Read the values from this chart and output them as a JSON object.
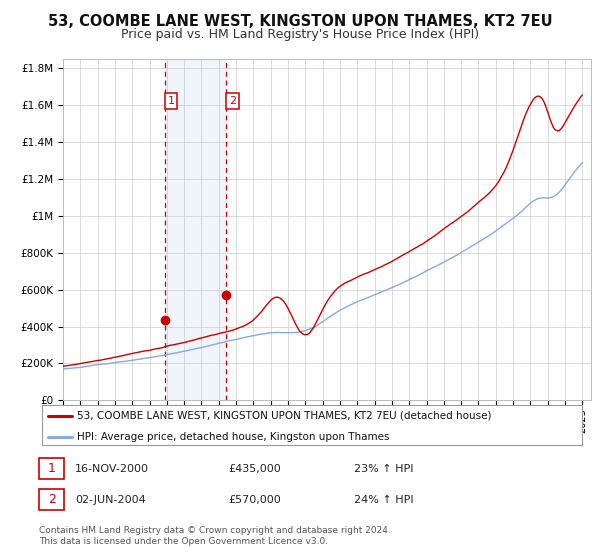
{
  "title": "53, COOMBE LANE WEST, KINGSTON UPON THAMES, KT2 7EU",
  "subtitle": "Price paid vs. HM Land Registry's House Price Index (HPI)",
  "background_color": "#ffffff",
  "plot_bg_color": "#ffffff",
  "grid_color": "#cccccc",
  "ylim": [
    0,
    1850000
  ],
  "yticks": [
    0,
    200000,
    400000,
    600000,
    800000,
    1000000,
    1200000,
    1400000,
    1600000,
    1800000
  ],
  "ytick_labels": [
    "£0",
    "£200K",
    "£400K",
    "£600K",
    "£800K",
    "£1M",
    "£1.2M",
    "£1.4M",
    "£1.6M",
    "£1.8M"
  ],
  "xlim_start": 1995.0,
  "xlim_end": 2025.5,
  "transaction1": {
    "date_num": 2000.88,
    "price": 435000,
    "label": "1"
  },
  "transaction2": {
    "date_num": 2004.42,
    "price": 570000,
    "label": "2"
  },
  "shaded_region_start": 2000.88,
  "shaded_region_end": 2004.42,
  "red_line_color": "#cc0000",
  "blue_line_color": "#88aadd",
  "legend_label_red": "53, COOMBE LANE WEST, KINGSTON UPON THAMES, KT2 7EU (detached house)",
  "legend_label_blue": "HPI: Average price, detached house, Kingston upon Thames",
  "table_row1": [
    "1",
    "16-NOV-2000",
    "£435,000",
    "23% ↑ HPI"
  ],
  "table_row2": [
    "2",
    "02-JUN-2004",
    "£570,000",
    "24% ↑ HPI"
  ],
  "footer_text": "Contains HM Land Registry data © Crown copyright and database right 2024.\nThis data is licensed under the Open Government Licence v3.0.",
  "title_fontsize": 10.5,
  "subtitle_fontsize": 9,
  "tick_fontsize": 7.5,
  "legend_fontsize": 8
}
